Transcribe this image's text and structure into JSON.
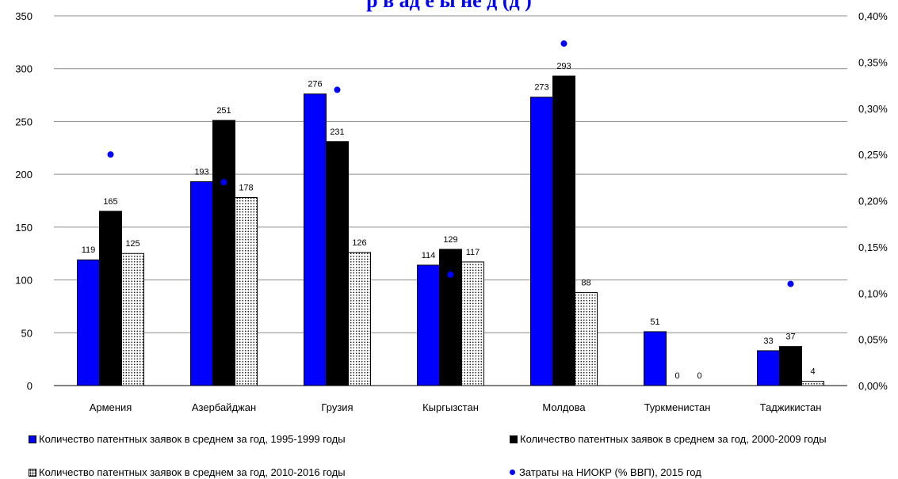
{
  "chart_data": {
    "type": "bar",
    "title": "р в ад е ы не д (д )",
    "categories": [
      "Армения",
      "Азербайджан",
      "Грузия",
      "Кыргызстан",
      "Молдова",
      "Туркменистан",
      "Таджикистан"
    ],
    "series": [
      {
        "name": "Количество патентных заявок в среднем за год, 1995-1999 годы",
        "values": [
          119,
          193,
          276,
          114,
          273,
          51,
          33
        ],
        "color": "#0000ff",
        "axis": "left"
      },
      {
        "name": "Количество патентных заявок в среднем за год, 2000-2009 годы",
        "values": [
          165,
          251,
          231,
          129,
          293,
          0,
          37
        ],
        "color": "#000000",
        "axis": "left"
      },
      {
        "name": "Количество патентных заявок в среднем за год, 2010-2016 годы",
        "values": [
          125,
          178,
          126,
          117,
          88,
          0,
          4
        ],
        "color": "#ffffff",
        "pattern": "dots",
        "axis": "left"
      },
      {
        "name": "Затраты на НИОКР (% ВВП), 2015 год",
        "values": [
          0.25,
          0.22,
          0.32,
          0.12,
          0.37,
          null,
          0.11
        ],
        "color": "#0000ff",
        "marker": "dot",
        "axis": "right"
      }
    ],
    "data_labels": [
      [
        "119",
        "193",
        "276",
        "114",
        "273",
        "51",
        "33"
      ],
      [
        "165",
        "251",
        "231",
        "129",
        "293",
        "0",
        "37"
      ],
      [
        "125",
        "178",
        "126",
        "117",
        "88",
        "0",
        "4"
      ]
    ],
    "y_left": {
      "min": 0,
      "max": 350,
      "ticks": [
        "0",
        "50",
        "100",
        "150",
        "200",
        "250",
        "300",
        "350"
      ]
    },
    "y_right": {
      "min": 0,
      "max": 0.4,
      "ticks": [
        "0,00%",
        "0,05%",
        "0,10%",
        "0,15%",
        "0,20%",
        "0,25%",
        "0,30%",
        "0,35%",
        "0,40%"
      ]
    },
    "grid": true,
    "legend_position": "bottom"
  }
}
